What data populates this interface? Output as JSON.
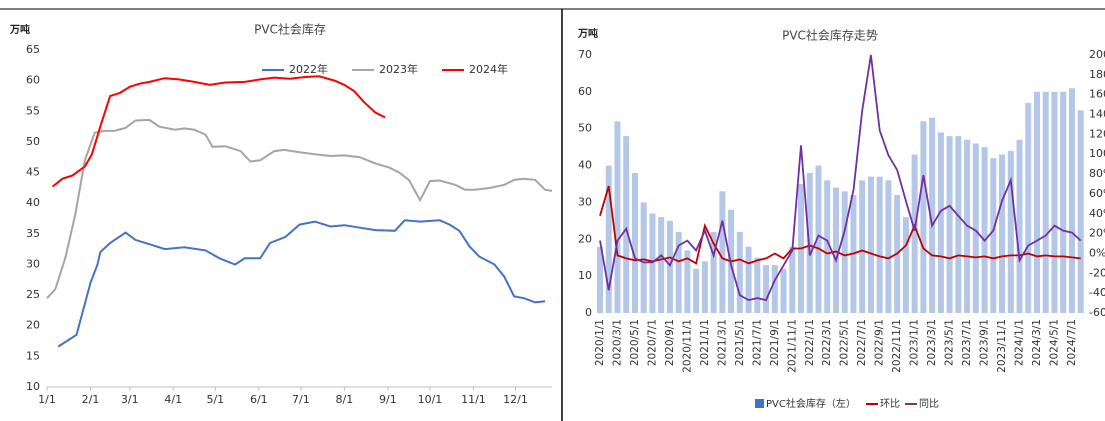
{
  "chart_data": [
    {
      "type": "line",
      "title": "PVC社会库存",
      "y_label": "万吨",
      "ylim": [
        10,
        65
      ],
      "yticks": [
        10,
        15,
        20,
        25,
        30,
        35,
        40,
        45,
        50,
        55,
        60,
        65
      ],
      "xlim": [
        0,
        360
      ],
      "xticks": [
        {
          "value": 0,
          "label": "1/1"
        },
        {
          "value": 31,
          "label": "2/1"
        },
        {
          "value": 59,
          "label": "3/1"
        },
        {
          "value": 90,
          "label": "4/1"
        },
        {
          "value": 120,
          "label": "5/1"
        },
        {
          "value": 151,
          "label": "6/1"
        },
        {
          "value": 181,
          "label": "7/1"
        },
        {
          "value": 212,
          "label": "8/1"
        },
        {
          "value": 243,
          "label": "9/1"
        },
        {
          "value": 273,
          "label": "10/1"
        },
        {
          "value": 304,
          "label": "11/1"
        },
        {
          "value": 334,
          "label": "12/1"
        }
      ],
      "legend": "top",
      "series": [
        {
          "name": "2022年",
          "color": "#4472c4",
          "x": [
            8,
            21,
            31,
            36,
            38,
            45,
            56,
            63,
            73,
            84,
            98,
            113,
            123,
            134,
            141,
            152,
            159,
            170,
            180,
            191,
            202,
            212,
            223,
            234,
            248,
            255,
            266,
            280,
            287,
            294,
            301,
            308,
            319,
            326,
            333,
            340,
            348,
            355
          ],
          "values": [
            16.6,
            18.5,
            27,
            30,
            32,
            33.5,
            35.2,
            34,
            33.3,
            32.5,
            32.8,
            32.3,
            31,
            30,
            31,
            31,
            33.5,
            34.5,
            36.5,
            37,
            36.2,
            36.4,
            36,
            35.6,
            35.5,
            37.2,
            37,
            37.2,
            36.5,
            35.5,
            33,
            31.3,
            30,
            28,
            24.8,
            24.5,
            23.8,
            24
          ]
        },
        {
          "name": "2023年",
          "color": "#a5a5a5",
          "x": [
            0,
            6,
            13,
            20,
            27,
            34,
            41,
            48,
            56,
            63,
            73,
            80,
            91,
            98,
            105,
            113,
            118,
            127,
            138,
            145,
            152,
            162,
            169,
            180,
            191,
            202,
            212,
            223,
            234,
            244,
            251,
            258,
            266,
            273,
            280,
            291,
            298,
            305,
            316,
            326,
            333,
            340,
            348,
            355,
            360
          ],
          "values": [
            24.5,
            26,
            31,
            38,
            47,
            51.5,
            51.8,
            51.8,
            52.3,
            53.5,
            53.6,
            52.5,
            52,
            52.2,
            52,
            51.2,
            49.2,
            49.3,
            48.5,
            46.8,
            47,
            48.5,
            48.7,
            48.3,
            48,
            47.7,
            47.8,
            47.5,
            46.5,
            45.8,
            45,
            43.8,
            40.5,
            43.6,
            43.7,
            43,
            42.2,
            42.2,
            42.5,
            43,
            43.8,
            44,
            43.8,
            42.2,
            42
          ]
        },
        {
          "name": "2024年",
          "color": "#ff0000",
          "x": [
            4,
            11,
            18,
            27,
            32,
            38,
            45,
            52,
            59,
            66,
            73,
            84,
            94,
            105,
            116,
            127,
            141,
            152,
            162,
            173,
            184,
            194,
            205,
            212,
            219,
            226,
            234,
            241
          ],
          "values": [
            42.7,
            44,
            44.5,
            46,
            48,
            52.5,
            57.5,
            58,
            59,
            59.5,
            59.8,
            60.4,
            60.2,
            59.8,
            59.3,
            59.7,
            59.8,
            60.2,
            60.5,
            60.3,
            60.6,
            60.7,
            60,
            59.3,
            58.3,
            56.5,
            54.8,
            54
          ]
        }
      ]
    },
    {
      "type": "combo",
      "title": "PVC社会库存走势",
      "y_label": "万吨",
      "ylim": [
        0,
        70
      ],
      "yticks": [
        0,
        10,
        20,
        30,
        40,
        50,
        60,
        70
      ],
      "y2lim": [
        -60,
        200
      ],
      "y2ticks": [
        {
          "value": -60,
          "label": "-60%"
        },
        {
          "value": -40,
          "label": "-40%"
        },
        {
          "value": -20,
          "label": "-20%"
        },
        {
          "value": 0,
          "label": "0%"
        },
        {
          "value": 20,
          "label": "20%"
        },
        {
          "value": 40,
          "label": "40%"
        },
        {
          "value": 60,
          "label": "60%"
        },
        {
          "value": 80,
          "label": "80%"
        },
        {
          "value": 100,
          "label": "100%"
        },
        {
          "value": 120,
          "label": "120%"
        },
        {
          "value": 140,
          "label": "140%"
        },
        {
          "value": 160,
          "label": "160%"
        },
        {
          "value": 180,
          "label": "180%"
        },
        {
          "value": 200,
          "label": "200%"
        }
      ],
      "legend": "bottom",
      "categories": [
        "2020/1/1",
        null,
        "2020/3/1",
        null,
        "2020/5/1",
        null,
        "2020/7/1",
        null,
        "2020/9/1",
        null,
        "2020/11/1",
        null,
        "2021/1/1",
        null,
        "2021/3/1",
        null,
        "2021/5/1",
        null,
        "2021/7/1",
        null,
        "2021/9/1",
        null,
        "2021/11/1",
        null,
        "2022/1/1",
        null,
        "2022/3/1",
        null,
        "2022/5/1",
        null,
        "2022/7/1",
        null,
        "2022/9/1",
        null,
        "2022/11/1",
        null,
        "2023/1/1",
        null,
        "2023/3/1",
        null,
        "2023/5/1",
        null,
        "2023/7/1",
        null,
        "2023/9/1",
        null,
        "2023/11/1",
        null,
        "2024/1/1",
        null,
        "2024/3/1",
        null,
        "2024/5/1",
        null,
        "2024/7/1",
        null
      ],
      "series": [
        {
          "name": "PVC社会库存（左）",
          "type": "bar",
          "color": "#b4c7e7",
          "values": [
            18,
            40,
            52,
            48,
            38,
            30,
            27,
            26,
            25,
            22,
            17,
            12,
            14,
            22,
            33,
            28,
            22,
            18,
            15,
            13,
            13,
            12,
            18,
            35,
            38,
            40,
            36,
            34,
            33,
            32,
            36,
            37,
            37,
            36,
            32,
            26,
            43,
            52,
            53,
            49,
            48,
            48,
            47,
            46,
            45,
            42,
            43,
            44,
            47,
            57,
            60,
            60,
            60,
            60,
            61,
            55
          ]
        },
        {
          "name": "环比",
          "type": "line",
          "axis": "y2",
          "color": "#c00000",
          "values": [
            38,
            68,
            -2,
            -5,
            -7,
            -6,
            -8,
            -6,
            -4,
            -8,
            -5,
            -10,
            28,
            10,
            -5,
            -8,
            -6,
            -10,
            -7,
            -5,
            0,
            -5,
            5,
            5,
            8,
            5,
            0,
            2,
            -2,
            0,
            3,
            0,
            -3,
            -5,
            0,
            8,
            28,
            5,
            -2,
            -3,
            -5,
            -2,
            -3,
            -4,
            -3,
            -5,
            -3,
            -2,
            -2,
            0,
            -3,
            -2,
            -3,
            -3,
            -4,
            -5
          ]
        },
        {
          "name": "同比",
          "type": "line",
          "axis": "y2",
          "color": "#7030a0",
          "values": [
            13,
            -37,
            13,
            25,
            -5,
            -9,
            -9,
            -2,
            -12,
            8,
            13,
            3,
            23,
            -2,
            33,
            -12,
            -42,
            -47,
            -45,
            -47,
            -27,
            -12,
            3,
            109,
            -2,
            18,
            13,
            -7,
            23,
            64,
            144,
            200,
            124,
            99,
            84,
            53,
            23,
            79,
            28,
            43,
            48,
            38,
            28,
            23,
            13,
            23,
            53,
            74,
            -7,
            8,
            13,
            18,
            28,
            23,
            21,
            13
          ]
        }
      ]
    }
  ]
}
